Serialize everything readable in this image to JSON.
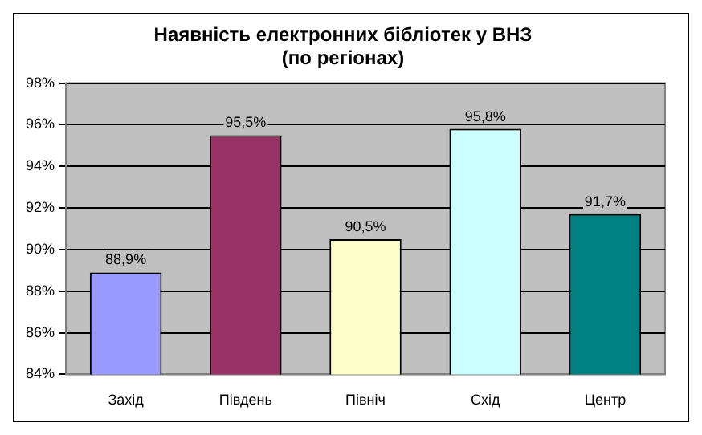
{
  "chart_data": {
    "type": "bar",
    "title": "Наявність електронних бібліотек у ВНЗ",
    "subtitle": "(по регіонах)",
    "categories": [
      "Захід",
      "Південь",
      "Північ",
      "Схід",
      "Центр"
    ],
    "values": [
      88.9,
      95.5,
      90.5,
      95.8,
      91.7
    ],
    "colors": [
      "#9999ff",
      "#993366",
      "#ffffcc",
      "#ccffff",
      "#008080"
    ],
    "value_labels": [
      "88,9%",
      "95,5%",
      "90,5%",
      "95,8%",
      "91,7%"
    ],
    "ylim": [
      84,
      98
    ],
    "yticks": [
      {
        "value": 84,
        "label": "84%"
      },
      {
        "value": 86,
        "label": "86%"
      },
      {
        "value": 88,
        "label": "88%"
      },
      {
        "value": 90,
        "label": "90%"
      },
      {
        "value": 92,
        "label": "92%"
      },
      {
        "value": 94,
        "label": "94%"
      },
      {
        "value": 96,
        "label": "96%"
      },
      {
        "value": 98,
        "label": "98%"
      }
    ],
    "grid": "y",
    "legend": false
  }
}
